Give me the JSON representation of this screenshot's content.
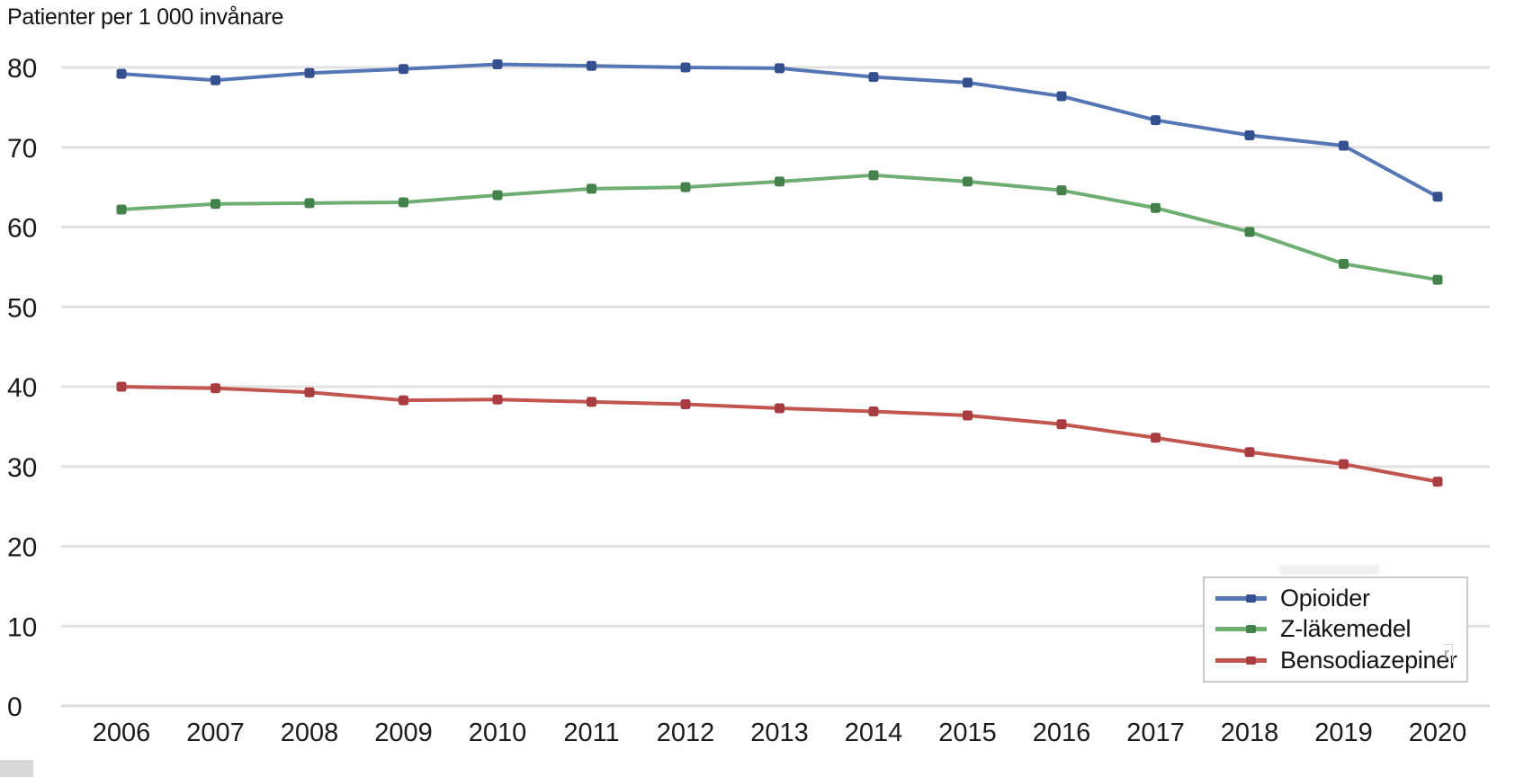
{
  "title": "Patienter per 1 000 invånare",
  "colors": {
    "background": "#ffffff",
    "grid": "#e2e2e2",
    "grid_zero": "#d9d9d9",
    "axis_text": "#1a1a1a",
    "legend_border": "#c9c9c9"
  },
  "artifacts": {
    "stray_glyph": "r"
  },
  "legend": {
    "position": "bottom-right"
  },
  "chart_data": {
    "type": "line",
    "title": "Patienter per 1 000 invånare",
    "xlabel": "",
    "ylabel": "Patienter per 1 000 invånare",
    "x": [
      2006,
      2007,
      2008,
      2009,
      2010,
      2011,
      2012,
      2013,
      2014,
      2015,
      2016,
      2017,
      2018,
      2019,
      2020
    ],
    "ylim": [
      0,
      80
    ],
    "yticks": [
      0,
      10,
      20,
      30,
      40,
      50,
      60,
      70,
      80
    ],
    "grid": true,
    "legend_position": "bottom-right",
    "series": [
      {
        "name": "Opioider",
        "color": "#5576b4",
        "marker_color": "#35508f",
        "values": [
          79.2,
          78.4,
          79.3,
          79.8,
          80.4,
          80.2,
          80.0,
          79.9,
          78.8,
          78.1,
          76.4,
          73.4,
          71.5,
          70.2,
          63.8
        ]
      },
      {
        "name": "Z-läkemedel",
        "color": "#6fae73",
        "marker_color": "#44814b",
        "values": [
          62.2,
          62.9,
          63.0,
          63.1,
          64.0,
          64.8,
          65.0,
          65.7,
          66.5,
          65.7,
          64.6,
          62.4,
          59.4,
          55.4,
          53.4
        ]
      },
      {
        "name": "Bensodiazepiner",
        "color": "#c2564f",
        "marker_color": "#a93c41",
        "values": [
          40.0,
          39.8,
          39.3,
          38.3,
          38.4,
          38.1,
          37.8,
          37.3,
          36.9,
          36.4,
          35.3,
          33.6,
          31.8,
          30.3,
          28.1
        ]
      }
    ]
  }
}
